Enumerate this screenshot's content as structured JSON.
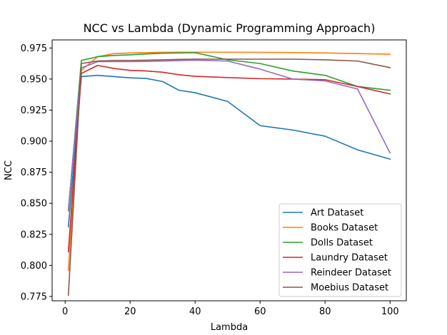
{
  "chart_data": {
    "type": "line",
    "title": "NCC vs Lambda (Dynamic Programming Approach)",
    "xlabel": "Lambda",
    "ylabel": "NCC",
    "xlim": [
      -4,
      105
    ],
    "ylim": [
      0.7715,
      0.9815
    ],
    "xticks": [
      0,
      20,
      40,
      60,
      80,
      100
    ],
    "yticks": [
      0.775,
      0.8,
      0.825,
      0.85,
      0.875,
      0.9,
      0.925,
      0.95,
      0.975
    ],
    "ytick_labels": [
      "0.775",
      "0.800",
      "0.825",
      "0.850",
      "0.875",
      "0.900",
      "0.925",
      "0.950",
      "0.975"
    ],
    "x": [
      1,
      5,
      10,
      15,
      20,
      25,
      30,
      35,
      40,
      50,
      60,
      70,
      80,
      90,
      100
    ],
    "legend_position": "lower right",
    "grid": false,
    "series": [
      {
        "name": "Art Dataset",
        "color": "#1f77b4",
        "values": [
          0.831,
          0.952,
          0.953,
          0.952,
          0.951,
          0.9505,
          0.948,
          0.941,
          0.939,
          0.932,
          0.9125,
          0.909,
          0.904,
          0.893,
          0.8855
        ]
      },
      {
        "name": "Books Dataset",
        "color": "#ff7f0e",
        "values": [
          0.796,
          0.957,
          0.968,
          0.9705,
          0.971,
          0.9713,
          0.9715,
          0.9716,
          0.9716,
          0.9716,
          0.9715,
          0.9713,
          0.971,
          0.9705,
          0.97
        ]
      },
      {
        "name": "Dolls Dataset",
        "color": "#2ca02c",
        "values": [
          0.844,
          0.965,
          0.968,
          0.969,
          0.9695,
          0.9702,
          0.9708,
          0.971,
          0.9712,
          0.9655,
          0.9625,
          0.9565,
          0.953,
          0.944,
          0.941
        ]
      },
      {
        "name": "Laundry Dataset",
        "color": "#d62728",
        "values": [
          0.811,
          0.9545,
          0.961,
          0.9585,
          0.957,
          0.9565,
          0.9555,
          0.9535,
          0.9522,
          0.9512,
          0.9503,
          0.95,
          0.9495,
          0.944,
          0.938
        ]
      },
      {
        "name": "Reindeer Dataset",
        "color": "#9467bd",
        "values": [
          0.845,
          0.959,
          0.964,
          0.964,
          0.964,
          0.9642,
          0.9645,
          0.9648,
          0.9652,
          0.9645,
          0.958,
          0.95,
          0.9485,
          0.942,
          0.8905
        ]
      },
      {
        "name": "Moebius Dataset",
        "color": "#8c564b",
        "values": [
          0.776,
          0.9625,
          0.9645,
          0.965,
          0.965,
          0.9652,
          0.9655,
          0.9658,
          0.966,
          0.966,
          0.966,
          0.966,
          0.9655,
          0.9645,
          0.9592
        ]
      }
    ]
  }
}
